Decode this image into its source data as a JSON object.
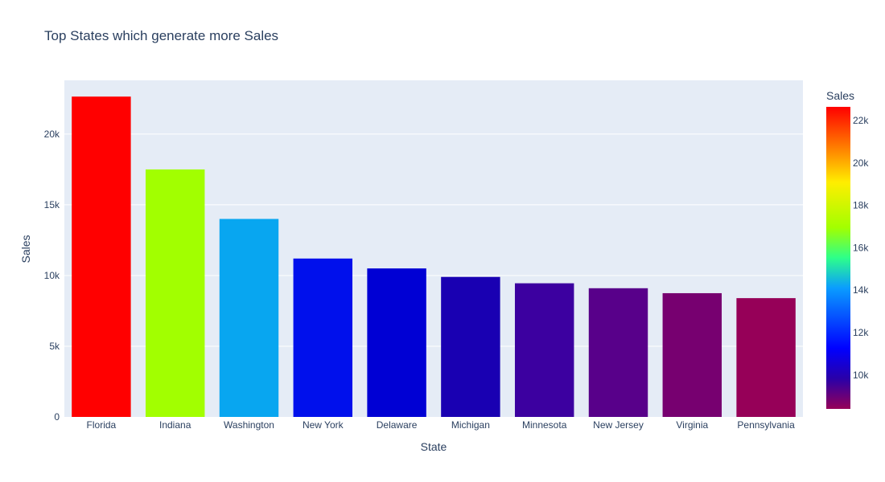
{
  "chart_data": {
    "type": "bar",
    "title": "Top States which generate more Sales",
    "xlabel": "State",
    "ylabel": "Sales",
    "ylim": [
      0,
      23800
    ],
    "yticks": [
      0,
      5000,
      10000,
      15000,
      20000
    ],
    "ytick_labels": [
      "0",
      "5k",
      "10k",
      "15k",
      "20k"
    ],
    "grid": true,
    "categories": [
      "Florida",
      "Indiana",
      "Washington",
      "New York",
      "Delaware",
      "Michigan",
      "Minnesota",
      "New Jersey",
      "Virginia",
      "Pennsylvania"
    ],
    "values": [
      22650,
      17500,
      14000,
      11200,
      10500,
      9900,
      9450,
      9100,
      8750,
      8400
    ],
    "colors": [
      "#ff0000",
      "#a2ff00",
      "#08a6f0",
      "#0010ec",
      "#0000d4",
      "#1900b2",
      "#3c00a0",
      "#58008a",
      "#770070",
      "#960058"
    ],
    "colorbar": {
      "title": "Sales",
      "range": [
        8400,
        22650
      ],
      "ticks": [
        10000,
        12000,
        14000,
        16000,
        18000,
        20000,
        22000
      ],
      "tick_labels": [
        "10k",
        "12k",
        "14k",
        "16k",
        "18k",
        "20k",
        "22k"
      ],
      "colorscale": [
        [
          0.0,
          "#960058"
        ],
        [
          0.1,
          "#2a00a8"
        ],
        [
          0.2,
          "#0000ff"
        ],
        [
          0.4,
          "#0a9cff"
        ],
        [
          0.5,
          "#2dff8a"
        ],
        [
          0.6,
          "#a2ff00"
        ],
        [
          0.75,
          "#ffee00"
        ],
        [
          0.85,
          "#ff8c00"
        ],
        [
          1.0,
          "#ff0000"
        ]
      ]
    }
  }
}
